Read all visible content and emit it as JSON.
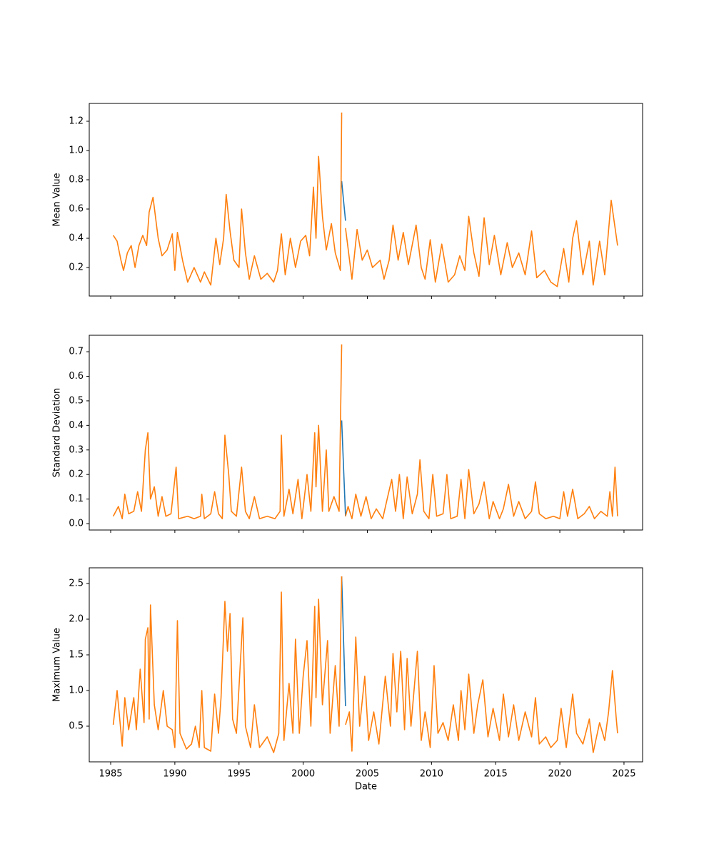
{
  "chart_data": [
    {
      "type": "line",
      "ylabel": "Mean Value",
      "xticklabels": false,
      "xlim": [
        1983.33,
        2026.45
      ],
      "xticks": [
        1985,
        1990,
        1995,
        2000,
        2005,
        2010,
        2015,
        2020,
        2025
      ],
      "ylim": [
        0.005,
        1.322
      ],
      "yticks": [
        0.2,
        0.4,
        0.6,
        0.8,
        {
          "value": 1,
          "label": "1.0"
        },
        1.2
      ],
      "series": [
        {
          "color": "#1f77b4",
          "x": [
            2003.0,
            2003.3
          ],
          "values": [
            0.79,
            0.52
          ]
        },
        {
          "color": "#ff7f0e",
          "x": [
            1985.2,
            1985.5,
            1985.8,
            1986.0,
            1986.3,
            1986.6,
            1986.9,
            1987.2,
            1987.5,
            1987.8,
            1988.0,
            1988.3,
            1988.7,
            1989.0,
            1989.4,
            1989.8,
            1990.0,
            1990.2,
            1990.6,
            1991.0,
            1991.5,
            1992.0,
            1992.3,
            1992.8,
            1993.2,
            1993.5,
            1993.8,
            1994.0,
            1994.3,
            1994.6,
            1995.0,
            1995.2,
            1995.5,
            1995.8,
            1996.2,
            1996.7,
            1997.2,
            1997.7,
            1998.0,
            1998.3,
            1998.6,
            1999.0,
            1999.4,
            1999.8,
            2000.2,
            2000.5,
            2000.8,
            2001.0,
            2001.2,
            2001.5,
            2001.8,
            2002.2,
            2002.5,
            2002.9,
            2003.0,
            2003.15,
            2003.3,
            2003.8,
            2004.2,
            2004.6,
            2005.0,
            2005.4,
            2006.0,
            2006.3,
            2006.7,
            2007.0,
            2007.4,
            2007.8,
            2008.2,
            2008.8,
            2009.2,
            2009.5,
            2009.9,
            2010.3,
            2010.8,
            2011.3,
            2011.8,
            2012.2,
            2012.6,
            2012.9,
            2013.3,
            2013.7,
            2014.1,
            2014.5,
            2014.9,
            2015.4,
            2015.9,
            2016.3,
            2016.8,
            2017.3,
            2017.8,
            2018.2,
            2018.8,
            2019.3,
            2019.8,
            2020.3,
            2020.7,
            2021.0,
            2021.3,
            2021.8,
            2022.3,
            2022.6,
            2023.1,
            2023.5,
            2024.0,
            2024.5
          ],
          "values": [
            0.42,
            0.38,
            0.25,
            0.18,
            0.3,
            0.35,
            0.2,
            0.35,
            0.42,
            0.35,
            0.58,
            0.68,
            0.4,
            0.28,
            0.32,
            0.43,
            0.18,
            0.44,
            0.25,
            0.1,
            0.2,
            0.1,
            0.17,
            0.08,
            0.4,
            0.22,
            0.4,
            0.7,
            0.45,
            0.25,
            0.2,
            0.6,
            0.3,
            0.12,
            0.28,
            0.12,
            0.16,
            0.1,
            0.18,
            0.43,
            0.15,
            0.4,
            0.2,
            0.38,
            0.42,
            0.28,
            0.75,
            0.4,
            0.96,
            0.55,
            0.32,
            0.5,
            0.3,
            0.18,
            1.26,
            null,
            0.47,
            0.12,
            0.46,
            0.25,
            0.32,
            0.2,
            0.25,
            0.12,
            0.25,
            0.49,
            0.25,
            0.44,
            0.22,
            0.49,
            0.2,
            0.12,
            0.39,
            0.1,
            0.36,
            0.1,
            0.15,
            0.28,
            0.18,
            0.55,
            0.3,
            0.14,
            0.54,
            0.22,
            0.42,
            0.15,
            0.37,
            0.2,
            0.3,
            0.15,
            0.45,
            0.13,
            0.18,
            0.1,
            0.07,
            0.33,
            0.1,
            0.4,
            0.52,
            0.15,
            0.38,
            0.08,
            0.38,
            0.15,
            0.66,
            0.35
          ]
        }
      ]
    },
    {
      "type": "line",
      "ylabel": "Standard Deviation",
      "xticklabels": false,
      "xlim": [
        1983.33,
        2026.45
      ],
      "xticks": [
        1985,
        1990,
        1995,
        2000,
        2005,
        2010,
        2015,
        2020,
        2025
      ],
      "ylim": [
        -0.026,
        0.767
      ],
      "yticks": [
        {
          "value": 0,
          "label": "0.0"
        },
        0.1,
        0.2,
        0.3,
        0.4,
        0.5,
        0.6,
        0.7
      ],
      "series": [
        {
          "color": "#1f77b4",
          "x": [
            2003.0,
            2003.3
          ],
          "values": [
            0.42,
            0.03
          ]
        },
        {
          "color": "#ff7f0e",
          "x": [
            1985.2,
            1985.6,
            1985.9,
            1986.1,
            1986.4,
            1986.8,
            1987.1,
            1987.4,
            1987.7,
            1987.9,
            1988.1,
            1988.4,
            1988.7,
            1989.0,
            1989.3,
            1989.7,
            1990.1,
            1990.3,
            1991.0,
            1991.5,
            1992.0,
            1992.1,
            1992.3,
            1992.8,
            1993.1,
            1993.4,
            1993.7,
            1993.9,
            1994.2,
            1994.4,
            1994.8,
            1995.2,
            1995.5,
            1995.8,
            1996.2,
            1996.6,
            1997.2,
            1997.8,
            1998.2,
            1998.3,
            1998.5,
            1998.9,
            1999.2,
            1999.6,
            1999.9,
            2000.3,
            2000.6,
            2000.9,
            2001.0,
            2001.2,
            2001.5,
            2001.8,
            2002.0,
            2002.4,
            2002.8,
            2003.0,
            2003.15,
            2003.3,
            2003.5,
            2003.8,
            2004.1,
            2004.5,
            2004.9,
            2005.3,
            2005.7,
            2006.2,
            2006.5,
            2006.9,
            2007.2,
            2007.5,
            2007.8,
            2008.1,
            2008.5,
            2008.9,
            2009.1,
            2009.4,
            2009.8,
            2010.1,
            2010.4,
            2010.9,
            2011.2,
            2011.5,
            2012.0,
            2012.3,
            2012.6,
            2012.9,
            2013.3,
            2013.7,
            2014.1,
            2014.5,
            2014.8,
            2015.3,
            2015.6,
            2016.0,
            2016.4,
            2016.8,
            2017.3,
            2017.8,
            2018.1,
            2018.4,
            2018.9,
            2019.5,
            2020.0,
            2020.3,
            2020.6,
            2021.0,
            2021.4,
            2021.9,
            2022.3,
            2022.7,
            2023.2,
            2023.7,
            2023.9,
            2024.1,
            2024.3,
            2024.5
          ],
          "values": [
            0.03,
            0.07,
            0.02,
            0.12,
            0.04,
            0.05,
            0.13,
            0.05,
            0.3,
            0.37,
            0.1,
            0.15,
            0.03,
            0.11,
            0.03,
            0.04,
            0.23,
            0.02,
            0.03,
            0.02,
            0.03,
            0.12,
            0.02,
            0.04,
            0.13,
            0.04,
            0.02,
            0.36,
            0.2,
            0.05,
            0.03,
            0.23,
            0.05,
            0.02,
            0.11,
            0.02,
            0.03,
            0.02,
            0.05,
            0.36,
            0.03,
            0.14,
            0.04,
            0.18,
            0.02,
            0.2,
            0.05,
            0.37,
            0.15,
            0.4,
            0.05,
            0.3,
            0.05,
            0.11,
            0.05,
            0.73,
            null,
            0.03,
            0.07,
            0.02,
            0.12,
            0.03,
            0.11,
            0.02,
            0.06,
            0.02,
            0.09,
            0.18,
            0.05,
            0.2,
            0.02,
            0.19,
            0.04,
            0.12,
            0.26,
            0.05,
            0.02,
            0.2,
            0.03,
            0.04,
            0.2,
            0.02,
            0.03,
            0.18,
            0.02,
            0.22,
            0.04,
            0.08,
            0.17,
            0.02,
            0.09,
            0.02,
            0.06,
            0.16,
            0.03,
            0.09,
            0.02,
            0.05,
            0.17,
            0.04,
            0.02,
            0.03,
            0.02,
            0.13,
            0.03,
            0.14,
            0.02,
            0.04,
            0.07,
            0.02,
            0.05,
            0.03,
            0.13,
            0.03,
            0.23,
            0.03
          ]
        }
      ]
    },
    {
      "type": "line",
      "ylabel": "Maximum Value",
      "xlabel": "Date",
      "xticklabels": true,
      "xlim": [
        1983.33,
        2026.45
      ],
      "xticks": [
        1985,
        1990,
        1995,
        2000,
        2005,
        2010,
        2015,
        2020,
        2025
      ],
      "ylim": [
        0,
        2.72
      ],
      "yticks": [
        0.5,
        {
          "value": 1,
          "label": "1.0"
        },
        1.5,
        {
          "value": 2,
          "label": "2.0"
        },
        2.5
      ],
      "series": [
        {
          "color": "#1f77b4",
          "x": [
            2003.0,
            2003.3
          ],
          "values": [
            2.6,
            0.78
          ]
        },
        {
          "color": "#ff7f0e",
          "x": [
            1985.2,
            1985.5,
            1985.9,
            1986.1,
            1986.4,
            1986.8,
            1987.0,
            1987.3,
            1987.6,
            1987.7,
            1987.9,
            1988.0,
            1988.1,
            1988.4,
            1988.7,
            1989.1,
            1989.4,
            1989.8,
            1990.0,
            1990.2,
            1990.4,
            1990.9,
            1991.3,
            1991.6,
            1991.9,
            1992.1,
            1992.3,
            1992.8,
            1993.1,
            1993.4,
            1993.6,
            1993.9,
            1994.1,
            1994.3,
            1994.5,
            1994.8,
            1995.3,
            1995.5,
            1995.9,
            1996.2,
            1996.6,
            1997.2,
            1997.7,
            1998.1,
            1998.3,
            1998.5,
            1998.9,
            1999.2,
            1999.4,
            1999.7,
            2000.0,
            2000.3,
            2000.6,
            2000.9,
            2001.0,
            2001.2,
            2001.5,
            2001.9,
            2002.1,
            2002.5,
            2002.8,
            2003.0,
            2003.15,
            2003.3,
            2003.6,
            2003.8,
            2004.1,
            2004.4,
            2004.8,
            2005.1,
            2005.5,
            2005.9,
            2006.4,
            2006.8,
            2007.0,
            2007.3,
            2007.6,
            2007.9,
            2008.1,
            2008.4,
            2008.9,
            2009.2,
            2009.5,
            2009.9,
            2010.2,
            2010.5,
            2010.9,
            2011.3,
            2011.7,
            2012.1,
            2012.3,
            2012.6,
            2012.9,
            2013.3,
            2013.6,
            2014.0,
            2014.4,
            2014.8,
            2015.3,
            2015.6,
            2016.0,
            2016.4,
            2016.8,
            2017.3,
            2017.8,
            2018.1,
            2018.4,
            2018.9,
            2019.3,
            2019.8,
            2020.1,
            2020.5,
            2021.0,
            2021.3,
            2021.8,
            2022.3,
            2022.6,
            2023.1,
            2023.5,
            2023.8,
            2024.1,
            2024.4,
            2024.5
          ],
          "values": [
            0.52,
            1.0,
            0.22,
            0.9,
            0.45,
            0.9,
            0.45,
            1.3,
            0.55,
            1.72,
            1.88,
            0.6,
            2.2,
            0.8,
            0.45,
            1.0,
            0.5,
            0.45,
            0.2,
            1.98,
            0.4,
            0.18,
            0.25,
            0.5,
            0.2,
            1.0,
            0.2,
            0.15,
            0.95,
            0.4,
            0.9,
            2.25,
            1.55,
            2.08,
            0.6,
            0.4,
            2.02,
            0.5,
            0.2,
            0.8,
            0.2,
            0.35,
            0.13,
            0.4,
            2.38,
            0.3,
            1.1,
            0.4,
            1.72,
            0.4,
            1.2,
            1.7,
            0.5,
            2.18,
            0.9,
            2.28,
            0.8,
            1.7,
            0.4,
            1.35,
            0.5,
            2.6,
            null,
            0.52,
            0.7,
            0.15,
            1.75,
            0.5,
            1.2,
            0.3,
            0.7,
            0.25,
            1.2,
            0.5,
            1.52,
            0.7,
            1.55,
            0.45,
            1.45,
            0.5,
            1.55,
            0.3,
            0.7,
            0.2,
            1.35,
            0.4,
            0.55,
            0.3,
            0.8,
            0.3,
            1.0,
            0.45,
            1.23,
            0.4,
            0.8,
            1.15,
            0.35,
            0.75,
            0.3,
            0.95,
            0.35,
            0.8,
            0.3,
            0.7,
            0.35,
            0.9,
            0.25,
            0.35,
            0.2,
            0.3,
            0.75,
            0.2,
            0.95,
            0.4,
            0.25,
            0.6,
            0.13,
            0.55,
            0.3,
            0.7,
            1.28,
            0.6,
            0.4
          ]
        }
      ]
    }
  ]
}
